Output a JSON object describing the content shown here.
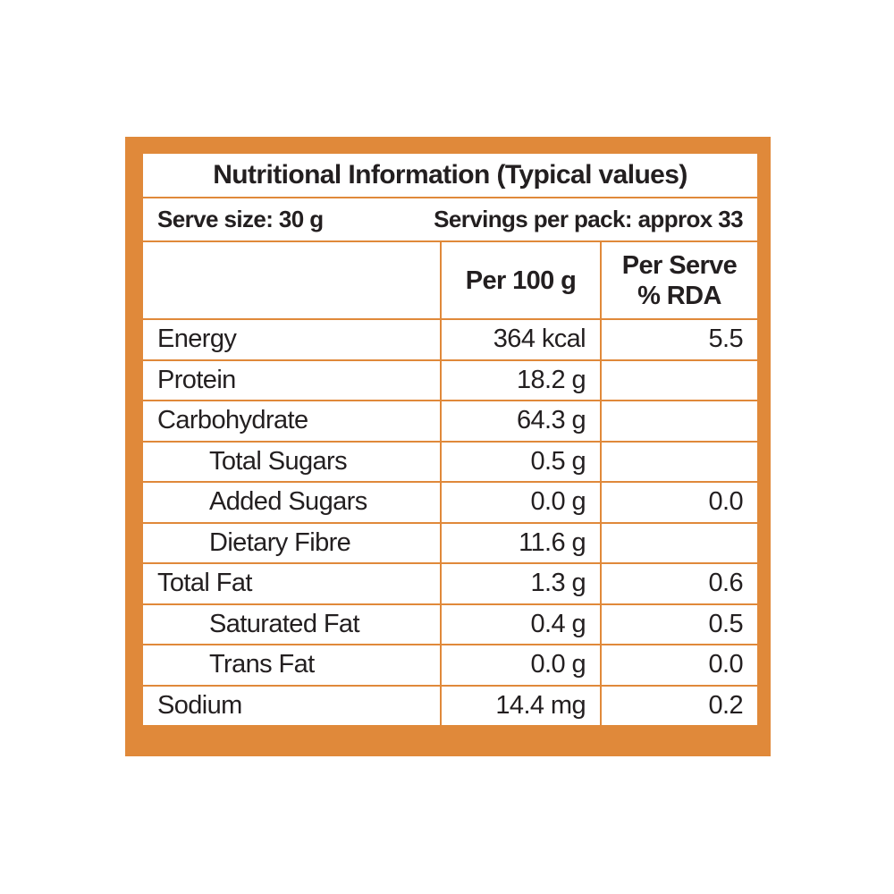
{
  "header": {
    "title": "Nutritional Information (Typical values)",
    "serve_size": "Serve size: 30 g",
    "servings": "Servings per pack: approx 33"
  },
  "table": {
    "columns": [
      "Per 100 g",
      [
        "Per Serve",
        "% RDA"
      ]
    ],
    "rows": [
      {
        "name": "Energy",
        "sub": false,
        "per100": "364 kcal",
        "rda": "5.5"
      },
      {
        "name": "Protein",
        "sub": false,
        "per100": "18.2 g",
        "rda": null
      },
      {
        "name": "Carbohydrate",
        "sub": false,
        "per100": "64.3 g",
        "rda": null
      },
      {
        "name": "Total Sugars",
        "sub": true,
        "per100": "0.5 g",
        "rda": null
      },
      {
        "name": "Added Sugars",
        "sub": true,
        "per100": "0.0 g",
        "rda": "0.0"
      },
      {
        "name": "Dietary Fibre",
        "sub": true,
        "per100": "11.6 g",
        "rda": null
      },
      {
        "name": "Total Fat",
        "sub": false,
        "per100": "1.3 g",
        "rda": "0.6"
      },
      {
        "name": "Saturated Fat",
        "sub": true,
        "per100": "0.4 g",
        "rda": "0.5"
      },
      {
        "name": "Trans Fat",
        "sub": true,
        "per100": "0.0 g",
        "rda": "0.0"
      },
      {
        "name": "Sodium",
        "sub": false,
        "per100": "14.4 mg",
        "rda": "0.2"
      }
    ]
  }
}
